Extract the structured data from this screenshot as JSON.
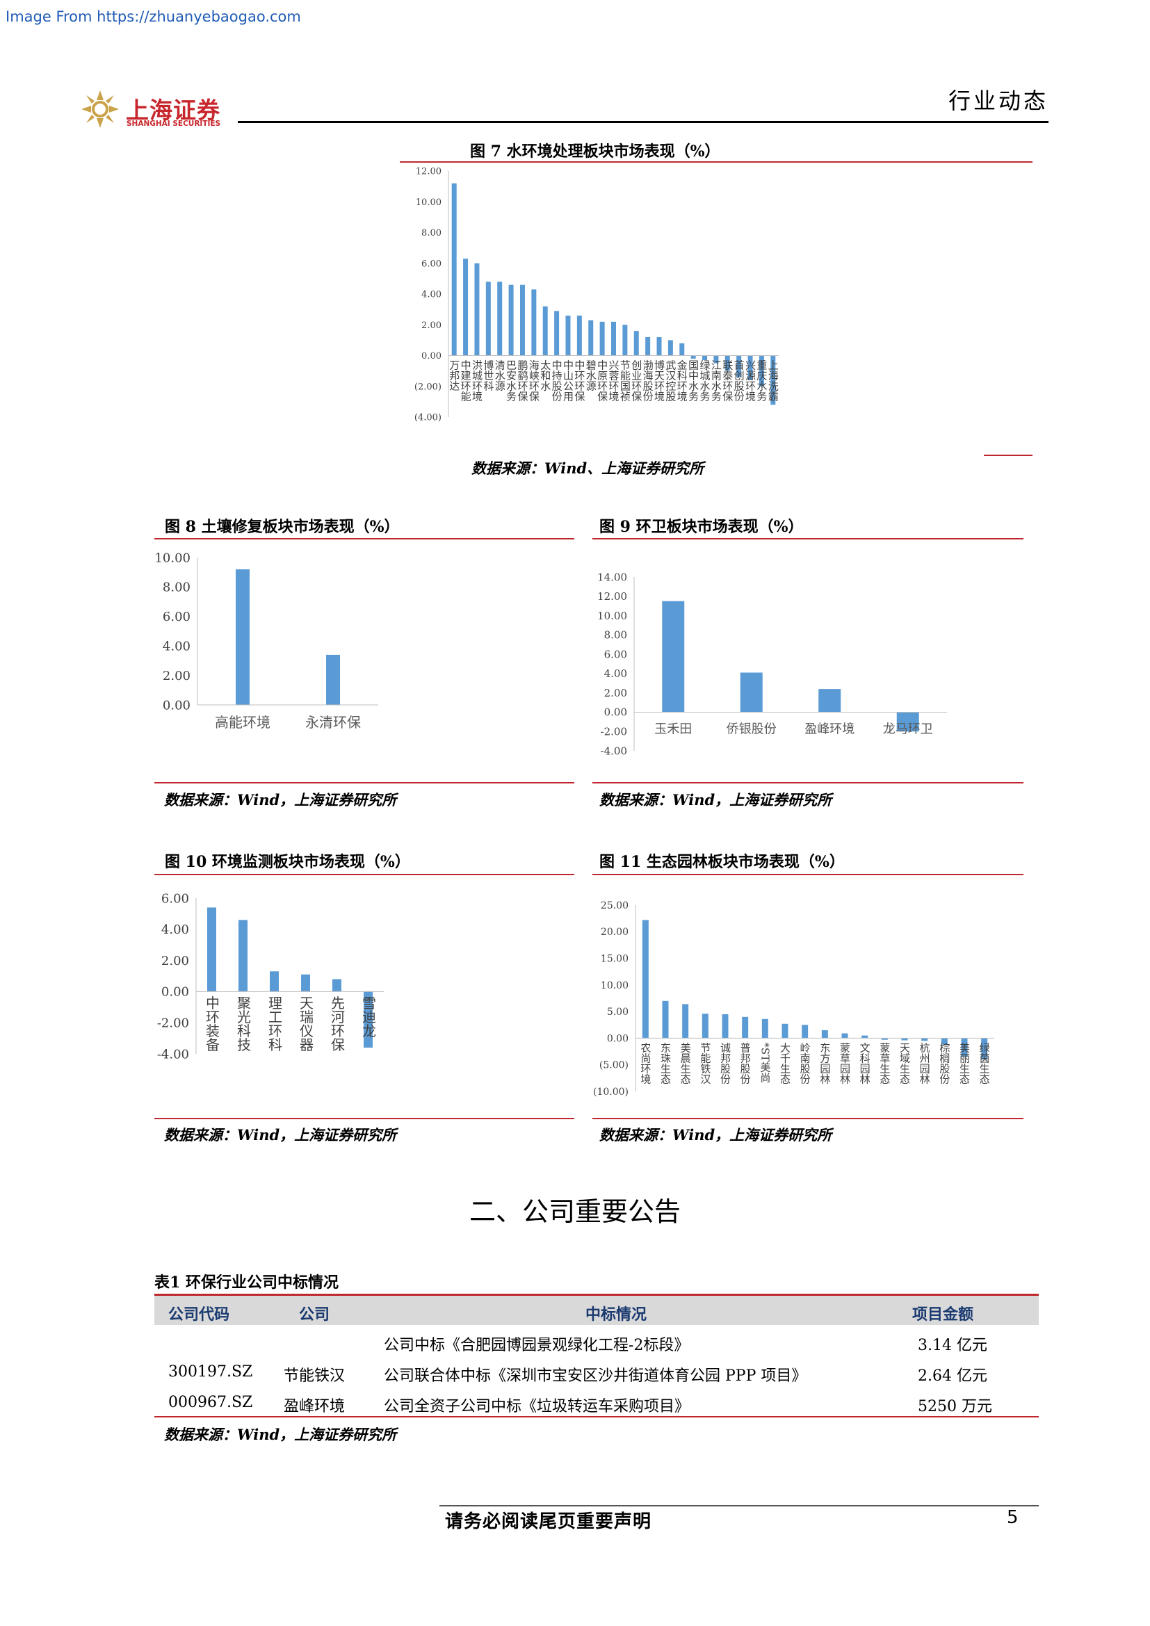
{
  "watermark": "Image From https://zhuanyebaogao.com",
  "header": {
    "logo_cn": "上海证券",
    "logo_en": "SHANGHAI SECURITIES",
    "doc_type": "行业动态"
  },
  "figures": {
    "fig7": {
      "title": "图 7 水环境处理板块市场表现（%）",
      "source": "数据来源：Wind、上海证券研究所"
    },
    "fig8": {
      "title": "图 8 土壤修复板块市场表现（%）",
      "source": "数据来源：Wind，上海证券研究所"
    },
    "fig9": {
      "title": "图 9 环卫板块市场表现（%）",
      "source": "数据来源：Wind，上海证券研究所"
    },
    "fig10": {
      "title": "图 10 环境监测板块市场表现（%）",
      "source": "数据来源：Wind，上海证券研究所"
    },
    "fig11": {
      "title": "图 11 生态园林板块市场表现（%）",
      "source": "数据来源：Wind，上海证券研究所"
    }
  },
  "chart_data": [
    {
      "id": "fig7",
      "type": "bar",
      "title": "图 7 水环境处理板块市场表现（%）",
      "categories": [
        "万邦达",
        "中建环能",
        "洪城环境",
        "博世科",
        "清水源",
        "巴安水务",
        "鹏鹞环保",
        "海峡环保",
        "太和水",
        "中持股份",
        "中山公用",
        "中环环保",
        "碧水源",
        "中原环保",
        "兴蓉环境",
        "节能国祯",
        "创业环保",
        "渤海股份",
        "博天环境",
        "武汉控股",
        "金科环境",
        "国中水务",
        "绿城水务",
        "江南水务",
        "联泰环保",
        "首创股份",
        "兴源环境",
        "重庆水务",
        "上海洗霸"
      ],
      "values": [
        11.2,
        6.3,
        6.0,
        4.8,
        4.8,
        4.6,
        4.6,
        4.3,
        3.2,
        2.9,
        2.6,
        2.6,
        2.3,
        2.2,
        2.2,
        2.0,
        1.6,
        1.2,
        1.2,
        1.0,
        0.8,
        -0.2,
        -0.3,
        -0.5,
        -1.0,
        -1.4,
        -1.6,
        -2.0,
        -3.2
      ],
      "ylim": [
        -4,
        12
      ],
      "yticks": [
        "(4.00)",
        "(2.00)",
        "0.00",
        "2.00",
        "4.00",
        "6.00",
        "8.00",
        "10.00",
        "12.00"
      ],
      "color": "#5b9bd5"
    },
    {
      "id": "fig8",
      "type": "bar",
      "title": "图 8 土壤修复板块市场表现（%）",
      "categories": [
        "高能环境",
        "永清环保"
      ],
      "values": [
        9.2,
        3.4
      ],
      "ylim": [
        0,
        10
      ],
      "yticks": [
        "0.00",
        "2.00",
        "4.00",
        "6.00",
        "8.00",
        "10.00"
      ],
      "color": "#5b9bd5"
    },
    {
      "id": "fig9",
      "type": "bar",
      "title": "图 9 环卫板块市场表现（%）",
      "categories": [
        "玉禾田",
        "侨银股份",
        "盈峰环境",
        "龙马环卫"
      ],
      "values": [
        11.5,
        4.1,
        2.4,
        -2.0
      ],
      "ylim": [
        -4,
        14
      ],
      "yticks": [
        "-4.00",
        "-2.00",
        "0.00",
        "2.00",
        "4.00",
        "6.00",
        "8.00",
        "10.00",
        "12.00",
        "14.00"
      ],
      "color": "#5b9bd5"
    },
    {
      "id": "fig10",
      "type": "bar",
      "title": "图 10 环境监测板块市场表现（%）",
      "categories": [
        "中环装备",
        "聚光科技",
        "理工环科",
        "天瑞仪器",
        "先河环保",
        "雪迪龙"
      ],
      "values": [
        5.4,
        4.6,
        1.3,
        1.1,
        0.8,
        -3.6
      ],
      "ylim": [
        -4,
        6
      ],
      "yticks": [
        "-4.00",
        "-2.00",
        "0.00",
        "2.00",
        "4.00",
        "6.00"
      ],
      "color": "#5b9bd5"
    },
    {
      "id": "fig11",
      "type": "bar",
      "title": "图 11 生态园林板块市场表现（%）",
      "categories": [
        "农尚环境",
        "东珠生态",
        "美晨生态",
        "节能铁汉",
        "诚邦股份",
        "普邦股份",
        "*ST美尚",
        "大千生态",
        "岭南股份",
        "东方园林",
        "蒙草园林",
        "文科园林",
        "蒙草生态",
        "天域生态",
        "杭州园林",
        "棕榈股份",
        "美丽生态",
        "绿茵生态"
      ],
      "values": [
        22.2,
        7.0,
        6.4,
        4.6,
        4.5,
        4.0,
        3.6,
        2.7,
        2.5,
        1.5,
        0.9,
        0.5,
        -0.3,
        -0.4,
        -0.5,
        -1.2,
        -3.5,
        -4.0
      ],
      "ylim": [
        -10,
        25
      ],
      "yticks": [
        "(10.00)",
        "(5.00)",
        "0.00",
        "5.00",
        "10.00",
        "15.00",
        "20.00",
        "25.00"
      ],
      "color": "#5b9bd5"
    }
  ],
  "section": {
    "title": "二、公司重要公告"
  },
  "table": {
    "title": "表1  环保行业公司中标情况",
    "headers": [
      "公司代码",
      "公司",
      "中标情况",
      "项目金额"
    ],
    "rows": [
      {
        "code": "",
        "company": "",
        "detail": "公司中标《合肥园博园景观绿化工程-2标段》",
        "amount": "3.14 亿元"
      },
      {
        "code": "300197.SZ",
        "company": "节能铁汉",
        "detail": "公司联合体中标《深圳市宝安区沙井街道体育公园 PPP 项目》",
        "amount": "2.64 亿元"
      },
      {
        "code": "000967.SZ",
        "company": "盈峰环境",
        "detail": "公司全资子公司中标《垃圾转运车采购项目》",
        "amount": "5250 万元"
      }
    ],
    "source": "数据来源：Wind，上海证券研究所"
  },
  "footer": {
    "notice": "请务必阅读尾页重要声明",
    "page": "5"
  }
}
